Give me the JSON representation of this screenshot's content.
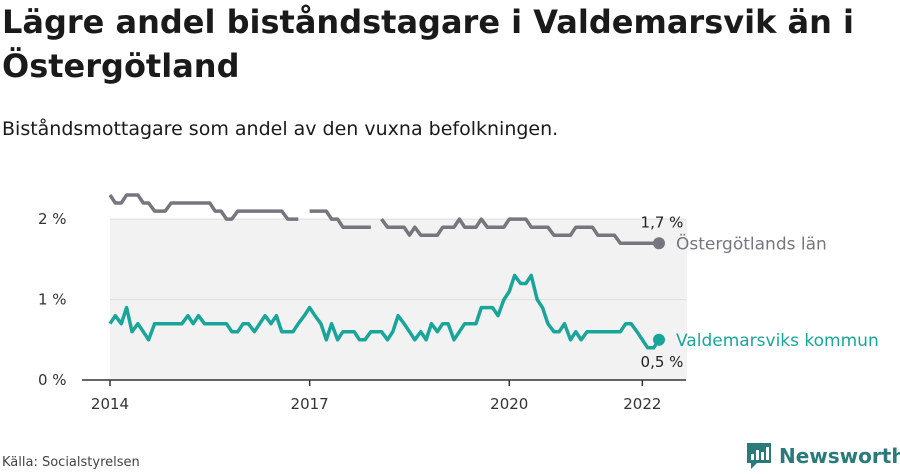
{
  "title": "Lägre andel biståndstagare i Valdemarsvik än i Östergötland",
  "subtitle": "Biståndsmottagare som andel av den vuxna befolkningen.",
  "source": "Källa: Socialstyrelsen",
  "brand": "Newsworthy",
  "colors": {
    "gray": "#77767e",
    "teal": "#1aa59a",
    "band": "#f2f2f2",
    "axis": "#333333",
    "grid": "#dddddd",
    "brand": "#2a7a7a"
  },
  "chart_data": {
    "type": "line",
    "x_ticks": [
      2014,
      2017,
      2020,
      2022
    ],
    "x_range": [
      2014.0,
      2022.25
    ],
    "y_ticks": [
      {
        "value": 0,
        "label": "0 %"
      },
      {
        "value": 1,
        "label": "1 %"
      },
      {
        "value": 2,
        "label": "2 %"
      }
    ],
    "ylim": [
      0,
      2.3
    ],
    "series": [
      {
        "name": "Östergötlands län",
        "color": "#77767e",
        "end_label": "1,7 %",
        "points": [
          [
            2014.0,
            2.3
          ],
          [
            2014.08,
            2.2
          ],
          [
            2014.17,
            2.2
          ],
          [
            2014.25,
            2.3
          ],
          [
            2014.33,
            2.3
          ],
          [
            2014.42,
            2.3
          ],
          [
            2014.5,
            2.2
          ],
          [
            2014.58,
            2.2
          ],
          [
            2014.67,
            2.1
          ],
          [
            2014.75,
            2.1
          ],
          [
            2014.83,
            2.1
          ],
          [
            2014.92,
            2.2
          ],
          [
            2015.0,
            2.2
          ],
          [
            2015.08,
            2.2
          ],
          [
            2015.17,
            2.2
          ],
          [
            2015.25,
            2.2
          ],
          [
            2015.33,
            2.2
          ],
          [
            2015.42,
            2.2
          ],
          [
            2015.5,
            2.2
          ],
          [
            2015.58,
            2.1
          ],
          [
            2015.67,
            2.1
          ],
          [
            2015.75,
            2.0
          ],
          [
            2015.83,
            2.0
          ],
          [
            2015.92,
            2.1
          ],
          [
            2016.0,
            2.1
          ],
          [
            2016.08,
            2.1
          ],
          [
            2016.17,
            2.1
          ],
          [
            2016.25,
            2.1
          ],
          [
            2016.33,
            2.1
          ],
          [
            2016.42,
            2.1
          ],
          [
            2016.5,
            2.1
          ],
          [
            2016.58,
            2.1
          ],
          [
            2016.67,
            2.0
          ],
          [
            2016.75,
            2.0
          ],
          [
            2016.83,
            2.0
          ],
          null,
          [
            2017.0,
            2.1
          ],
          [
            2017.08,
            2.1
          ],
          [
            2017.17,
            2.1
          ],
          [
            2017.25,
            2.1
          ],
          [
            2017.33,
            2.0
          ],
          [
            2017.42,
            2.0
          ],
          [
            2017.5,
            1.9
          ],
          [
            2017.58,
            1.9
          ],
          [
            2017.67,
            1.9
          ],
          [
            2017.75,
            1.9
          ],
          [
            2017.83,
            1.9
          ],
          [
            2017.92,
            1.9
          ],
          null,
          [
            2018.08,
            2.0
          ],
          [
            2018.17,
            1.9
          ],
          [
            2018.25,
            1.9
          ],
          [
            2018.33,
            1.9
          ],
          [
            2018.42,
            1.9
          ],
          [
            2018.5,
            1.8
          ],
          [
            2018.58,
            1.9
          ],
          [
            2018.67,
            1.8
          ],
          [
            2018.75,
            1.8
          ],
          [
            2018.83,
            1.8
          ],
          [
            2018.92,
            1.8
          ],
          [
            2019.0,
            1.9
          ],
          [
            2019.08,
            1.9
          ],
          [
            2019.17,
            1.9
          ],
          [
            2019.25,
            2.0
          ],
          [
            2019.33,
            1.9
          ],
          [
            2019.42,
            1.9
          ],
          [
            2019.5,
            1.9
          ],
          [
            2019.58,
            2.0
          ],
          [
            2019.67,
            1.9
          ],
          [
            2019.75,
            1.9
          ],
          [
            2019.83,
            1.9
          ],
          [
            2019.92,
            1.9
          ],
          [
            2020.0,
            2.0
          ],
          [
            2020.08,
            2.0
          ],
          [
            2020.17,
            2.0
          ],
          [
            2020.25,
            2.0
          ],
          [
            2020.33,
            1.9
          ],
          [
            2020.42,
            1.9
          ],
          [
            2020.5,
            1.9
          ],
          [
            2020.58,
            1.9
          ],
          [
            2020.67,
            1.8
          ],
          [
            2020.75,
            1.8
          ],
          [
            2020.83,
            1.8
          ],
          [
            2020.92,
            1.8
          ],
          [
            2021.0,
            1.9
          ],
          [
            2021.08,
            1.9
          ],
          [
            2021.17,
            1.9
          ],
          [
            2021.25,
            1.9
          ],
          [
            2021.33,
            1.8
          ],
          [
            2021.42,
            1.8
          ],
          [
            2021.5,
            1.8
          ],
          [
            2021.58,
            1.8
          ],
          [
            2021.67,
            1.7
          ],
          [
            2021.75,
            1.7
          ],
          [
            2021.83,
            1.7
          ],
          [
            2021.92,
            1.7
          ],
          [
            2022.0,
            1.7
          ],
          [
            2022.08,
            1.7
          ],
          [
            2022.17,
            1.7
          ],
          [
            2022.25,
            1.7
          ]
        ]
      },
      {
        "name": "Valdemarsviks kommun",
        "color": "#1aa59a",
        "end_label": "0,5 %",
        "points": [
          [
            2014.0,
            0.7
          ],
          [
            2014.08,
            0.8
          ],
          [
            2014.17,
            0.7
          ],
          [
            2014.25,
            0.9
          ],
          [
            2014.33,
            0.6
          ],
          [
            2014.42,
            0.7
          ],
          [
            2014.5,
            0.6
          ],
          [
            2014.58,
            0.5
          ],
          [
            2014.67,
            0.7
          ],
          [
            2014.75,
            0.7
          ],
          [
            2014.83,
            0.7
          ],
          [
            2014.92,
            0.7
          ],
          [
            2015.0,
            0.7
          ],
          [
            2015.08,
            0.7
          ],
          [
            2015.17,
            0.8
          ],
          [
            2015.25,
            0.7
          ],
          [
            2015.33,
            0.8
          ],
          [
            2015.42,
            0.7
          ],
          [
            2015.5,
            0.7
          ],
          [
            2015.58,
            0.7
          ],
          [
            2015.67,
            0.7
          ],
          [
            2015.75,
            0.7
          ],
          [
            2015.83,
            0.6
          ],
          [
            2015.92,
            0.6
          ],
          [
            2016.0,
            0.7
          ],
          [
            2016.08,
            0.7
          ],
          [
            2016.17,
            0.6
          ],
          [
            2016.25,
            0.7
          ],
          [
            2016.33,
            0.8
          ],
          [
            2016.42,
            0.7
          ],
          [
            2016.5,
            0.8
          ],
          [
            2016.58,
            0.6
          ],
          [
            2016.67,
            0.6
          ],
          [
            2016.75,
            0.6
          ],
          [
            2016.83,
            0.7
          ],
          [
            2016.92,
            0.8
          ],
          [
            2017.0,
            0.9
          ],
          [
            2017.08,
            0.8
          ],
          [
            2017.17,
            0.7
          ],
          [
            2017.25,
            0.5
          ],
          [
            2017.33,
            0.7
          ],
          [
            2017.42,
            0.5
          ],
          [
            2017.5,
            0.6
          ],
          [
            2017.58,
            0.6
          ],
          [
            2017.67,
            0.6
          ],
          [
            2017.75,
            0.5
          ],
          [
            2017.83,
            0.5
          ],
          [
            2017.92,
            0.6
          ],
          [
            2018.0,
            0.6
          ],
          [
            2018.08,
            0.6
          ],
          [
            2018.17,
            0.5
          ],
          [
            2018.25,
            0.6
          ],
          [
            2018.33,
            0.8
          ],
          [
            2018.42,
            0.7
          ],
          [
            2018.5,
            0.6
          ],
          [
            2018.58,
            0.5
          ],
          [
            2018.67,
            0.6
          ],
          [
            2018.75,
            0.5
          ],
          [
            2018.83,
            0.7
          ],
          [
            2018.92,
            0.6
          ],
          [
            2019.0,
            0.7
          ],
          [
            2019.08,
            0.7
          ],
          [
            2019.17,
            0.5
          ],
          [
            2019.25,
            0.6
          ],
          [
            2019.33,
            0.7
          ],
          [
            2019.42,
            0.7
          ],
          [
            2019.5,
            0.7
          ],
          [
            2019.58,
            0.9
          ],
          [
            2019.67,
            0.9
          ],
          [
            2019.75,
            0.9
          ],
          [
            2019.83,
            0.8
          ],
          [
            2019.92,
            1.0
          ],
          [
            2020.0,
            1.1
          ],
          [
            2020.08,
            1.3
          ],
          [
            2020.17,
            1.2
          ],
          [
            2020.25,
            1.2
          ],
          [
            2020.33,
            1.3
          ],
          [
            2020.42,
            1.0
          ],
          [
            2020.5,
            0.9
          ],
          [
            2020.58,
            0.7
          ],
          [
            2020.67,
            0.6
          ],
          [
            2020.75,
            0.6
          ],
          [
            2020.83,
            0.7
          ],
          [
            2020.92,
            0.5
          ],
          [
            2021.0,
            0.6
          ],
          [
            2021.08,
            0.5
          ],
          [
            2021.17,
            0.6
          ],
          [
            2021.25,
            0.6
          ],
          [
            2021.33,
            0.6
          ],
          [
            2021.42,
            0.6
          ],
          [
            2021.5,
            0.6
          ],
          [
            2021.58,
            0.6
          ],
          [
            2021.67,
            0.6
          ],
          [
            2021.75,
            0.7
          ],
          [
            2021.83,
            0.7
          ],
          [
            2021.92,
            0.6
          ],
          [
            2022.0,
            0.5
          ],
          [
            2022.08,
            0.4
          ],
          [
            2022.17,
            0.4
          ],
          [
            2022.25,
            0.5
          ]
        ]
      }
    ]
  }
}
